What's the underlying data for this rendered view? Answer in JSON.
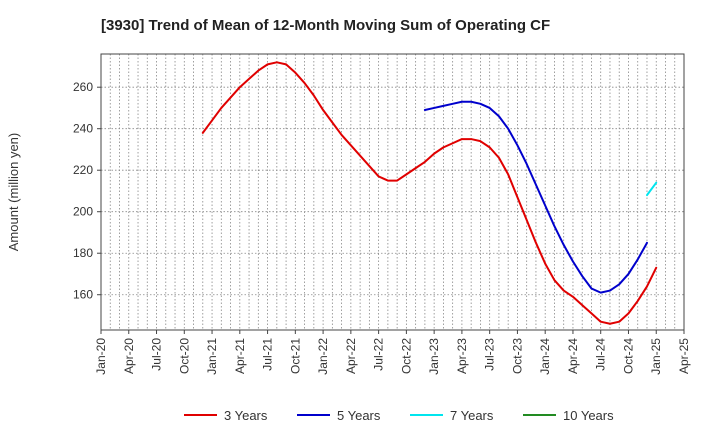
{
  "chart_data": {
    "type": "line",
    "title": "[3930]  Trend of Mean of 12-Month Moving Sum of Operating CF",
    "xlabel": "",
    "ylabel": "Amount (million yen)",
    "x_start": "2020-01",
    "x_end": "2025-04",
    "ylim": [
      143,
      276
    ],
    "yticks": [
      160,
      180,
      200,
      220,
      240,
      260
    ],
    "xtick_labels": [
      "Jan-20",
      "Apr-20",
      "Jul-20",
      "Oct-20",
      "Jan-21",
      "Apr-21",
      "Jul-21",
      "Oct-21",
      "Jan-22",
      "Apr-22",
      "Jul-22",
      "Oct-22",
      "Jan-23",
      "Apr-23",
      "Jul-23",
      "Oct-23",
      "Jan-24",
      "Apr-24",
      "Jul-24",
      "Oct-24",
      "Jan-25",
      "Apr-25"
    ],
    "grid": true,
    "legend_position": "bottom",
    "series": [
      {
        "name": "3 Years",
        "color": "#e00000",
        "points": [
          [
            "2020-12",
            238
          ],
          [
            "2021-01",
            244
          ],
          [
            "2021-02",
            250
          ],
          [
            "2021-03",
            255
          ],
          [
            "2021-04",
            260
          ],
          [
            "2021-05",
            264
          ],
          [
            "2021-06",
            268
          ],
          [
            "2021-07",
            271
          ],
          [
            "2021-08",
            272
          ],
          [
            "2021-09",
            271
          ],
          [
            "2021-10",
            267
          ],
          [
            "2021-11",
            262
          ],
          [
            "2021-12",
            256
          ],
          [
            "2022-01",
            249
          ],
          [
            "2022-02",
            243
          ],
          [
            "2022-03",
            237
          ],
          [
            "2022-04",
            232
          ],
          [
            "2022-05",
            227
          ],
          [
            "2022-06",
            222
          ],
          [
            "2022-07",
            217
          ],
          [
            "2022-08",
            215
          ],
          [
            "2022-09",
            215
          ],
          [
            "2022-10",
            218
          ],
          [
            "2022-11",
            221
          ],
          [
            "2022-12",
            224
          ],
          [
            "2023-01",
            228
          ],
          [
            "2023-02",
            231
          ],
          [
            "2023-03",
            233
          ],
          [
            "2023-04",
            235
          ],
          [
            "2023-05",
            235
          ],
          [
            "2023-06",
            234
          ],
          [
            "2023-07",
            231
          ],
          [
            "2023-08",
            226
          ],
          [
            "2023-09",
            218
          ],
          [
            "2023-10",
            207
          ],
          [
            "2023-11",
            196
          ],
          [
            "2023-12",
            185
          ],
          [
            "2024-01",
            175
          ],
          [
            "2024-02",
            167
          ],
          [
            "2024-03",
            162
          ],
          [
            "2024-04",
            159
          ],
          [
            "2024-05",
            155
          ],
          [
            "2024-06",
            151
          ],
          [
            "2024-07",
            147
          ],
          [
            "2024-08",
            146
          ],
          [
            "2024-09",
            147
          ],
          [
            "2024-10",
            151
          ],
          [
            "2024-11",
            157
          ],
          [
            "2024-12",
            164
          ],
          [
            "2025-01",
            173
          ]
        ]
      },
      {
        "name": "5 Years",
        "color": "#0000cc",
        "points": [
          [
            "2022-12",
            249
          ],
          [
            "2023-01",
            250
          ],
          [
            "2023-02",
            251
          ],
          [
            "2023-03",
            252
          ],
          [
            "2023-04",
            253
          ],
          [
            "2023-05",
            253
          ],
          [
            "2023-06",
            252
          ],
          [
            "2023-07",
            250
          ],
          [
            "2023-08",
            246
          ],
          [
            "2023-09",
            240
          ],
          [
            "2023-10",
            232
          ],
          [
            "2023-11",
            223
          ],
          [
            "2023-12",
            213
          ],
          [
            "2024-01",
            203
          ],
          [
            "2024-02",
            193
          ],
          [
            "2024-03",
            184
          ],
          [
            "2024-04",
            176
          ],
          [
            "2024-05",
            169
          ],
          [
            "2024-06",
            163
          ],
          [
            "2024-07",
            161
          ],
          [
            "2024-08",
            162
          ],
          [
            "2024-09",
            165
          ],
          [
            "2024-10",
            170
          ],
          [
            "2024-11",
            177
          ],
          [
            "2024-12",
            185
          ]
        ]
      },
      {
        "name": "7 Years",
        "color": "#00e5ee",
        "points": [
          [
            "2024-12",
            208
          ],
          [
            "2025-01",
            214
          ]
        ]
      },
      {
        "name": "10 Years",
        "color": "#228b22",
        "points": []
      }
    ]
  }
}
